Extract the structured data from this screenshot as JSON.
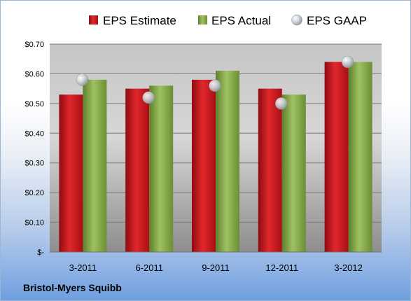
{
  "company": "Bristol-Myers Squibb",
  "colors": {
    "estimate": "#c8171c",
    "actual": "#8db050",
    "gaap": "#bfc6cc"
  },
  "chart_data": {
    "type": "bar",
    "categories": [
      "3-2011",
      "6-2011",
      "9-2011",
      "12-2011",
      "3-2012"
    ],
    "series": [
      {
        "name": "EPS Estimate",
        "values": [
          0.53,
          0.55,
          0.58,
          0.55,
          0.64
        ]
      },
      {
        "name": "EPS Actual",
        "values": [
          0.58,
          0.56,
          0.61,
          0.53,
          0.64
        ]
      },
      {
        "name": "EPS GAAP",
        "values": [
          0.58,
          0.52,
          0.56,
          0.5,
          0.64
        ],
        "style": "marker"
      }
    ],
    "yticks": [
      "$-",
      "$0.10",
      "$0.20",
      "$0.30",
      "$0.40",
      "$0.50",
      "$0.60",
      "$0.70"
    ],
    "ylim": [
      0,
      0.7
    ],
    "grid": true,
    "legend": "top"
  }
}
